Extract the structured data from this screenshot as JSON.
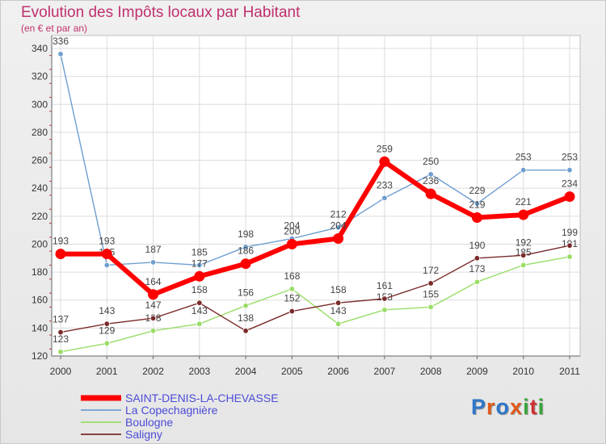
{
  "header": {
    "title": "Evolution des Impôts locaux par Habitant",
    "subtitle": "(en € et par an)"
  },
  "logo": {
    "text": "Proxiti",
    "letters": [
      {
        "ch": "P",
        "color": "#2f77c8"
      },
      {
        "ch": "r",
        "color": "#e05a1a"
      },
      {
        "ch": "o",
        "color": "#2f77c8"
      },
      {
        "ch": "x",
        "color": "#e05a1a"
      },
      {
        "ch": "i",
        "color": "#3aa53a"
      },
      {
        "ch": "t",
        "color": "#d03030"
      },
      {
        "ch": "i",
        "color": "#3aa53a"
      }
    ]
  },
  "chart_data": {
    "type": "line",
    "title": "Evolution des Impôts locaux par Habitant",
    "subtitle": "(en € et par an)",
    "x": [
      2000,
      2001,
      2002,
      2003,
      2004,
      2005,
      2006,
      2007,
      2008,
      2009,
      2010,
      2011
    ],
    "ylim": [
      120,
      340
    ],
    "yticks": [
      120,
      140,
      160,
      180,
      200,
      220,
      240,
      260,
      280,
      300,
      320,
      340
    ],
    "grid": true,
    "legend_position": "bottom-left",
    "series": [
      {
        "name": "SAINT-DENIS-LA-CHEVASSE",
        "color": "#ff0000",
        "values": [
          193,
          193,
          164,
          177,
          186,
          200,
          204,
          259,
          236,
          219,
          221,
          234
        ],
        "labels": [
          "193",
          "193",
          "164",
          "177",
          "186",
          "200",
          "204",
          "259",
          "236",
          "219",
          "221",
          "234"
        ]
      },
      {
        "name": "La Copechagnière",
        "color": "#6f9fd0",
        "values": [
          336,
          185,
          187,
          185,
          198,
          204,
          212,
          233,
          250,
          229,
          253,
          253
        ],
        "labels": [
          "336",
          "185",
          "187",
          "185",
          "198",
          "204",
          "212",
          "233",
          "250",
          "229",
          "253",
          "253"
        ]
      },
      {
        "name": "Boulogne",
        "color": "#99dd66",
        "values": [
          123,
          129,
          138,
          143,
          156,
          168,
          143,
          153,
          155,
          173,
          185,
          191
        ],
        "labels": [
          "123",
          "129",
          "138",
          "143",
          "156",
          "168",
          "143",
          "153",
          "155",
          "173",
          "185",
          "191"
        ]
      },
      {
        "name": "Saligny",
        "color": "#7a2a2a",
        "values": [
          137,
          143,
          147,
          158,
          138,
          152,
          158,
          161,
          172,
          190,
          192,
          199
        ],
        "labels": [
          "137",
          "143",
          "147",
          "158",
          "138",
          "152",
          "158",
          "161",
          "172",
          "190",
          "192",
          "199"
        ]
      }
    ]
  }
}
